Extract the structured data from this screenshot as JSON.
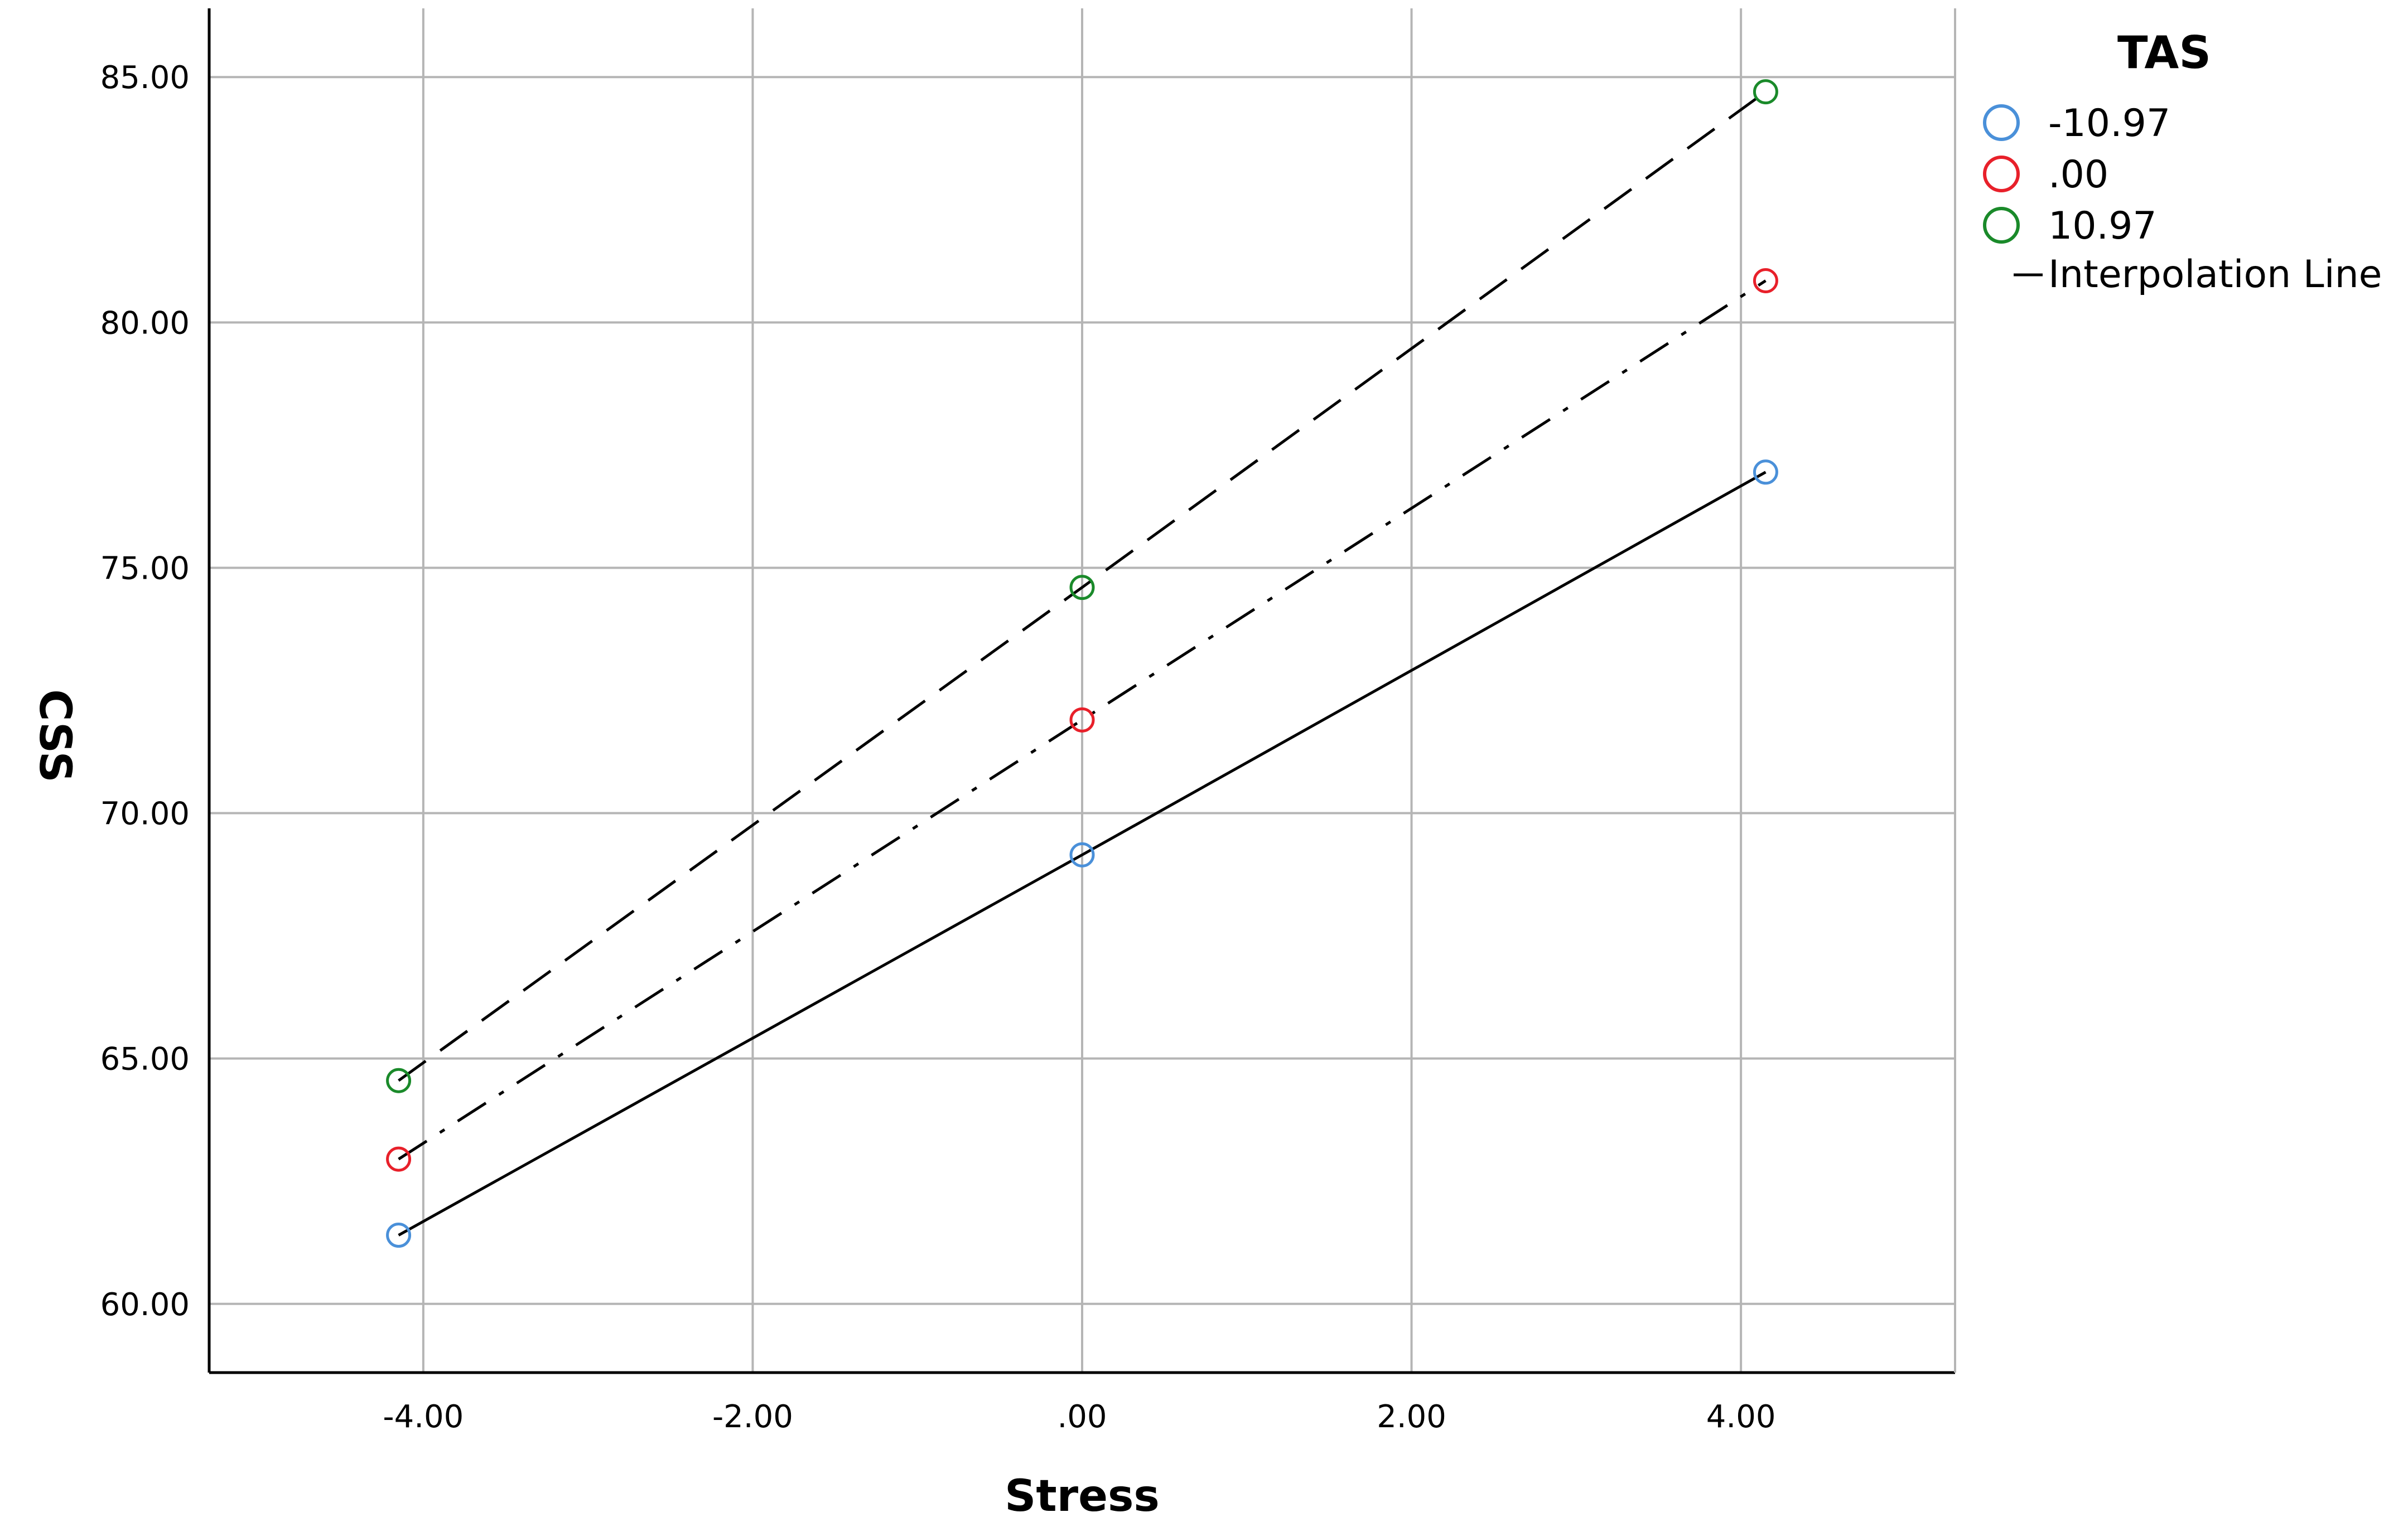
{
  "chart_data": {
    "type": "line",
    "xlabel": "Stress",
    "ylabel": "CSS",
    "xlim": [
      -5.3,
      5.3
    ],
    "ylim": [
      58.6,
      86.4
    ],
    "xticks": [
      -4,
      -2,
      0,
      2,
      4
    ],
    "xtick_labels": [
      "-4.00",
      "-2.00",
      ".00",
      "2.00",
      "4.00"
    ],
    "yticks": [
      60,
      65,
      70,
      75,
      80,
      85
    ],
    "ytick_labels": [
      "60.00",
      "65.00",
      "70.00",
      "75.00",
      "80.00",
      "85.00"
    ],
    "grid": true,
    "legend": {
      "title": "TAS",
      "placement": "right",
      "interpolation_label": "Interpolation Line"
    },
    "series": [
      {
        "name": "-10.97",
        "color": "#4a90d9",
        "dash": "solid",
        "points": [
          {
            "x": -4.15,
            "y": 61.4
          },
          {
            "x": 0.0,
            "y": 69.15
          },
          {
            "x": 4.15,
            "y": 76.95
          }
        ]
      },
      {
        "name": ".00",
        "color": "#e8202a",
        "dash": "dashdot",
        "points": [
          {
            "x": -4.15,
            "y": 62.95
          },
          {
            "x": 0.0,
            "y": 71.9
          },
          {
            "x": 4.15,
            "y": 80.85
          }
        ]
      },
      {
        "name": "10.97",
        "color": "#1a8a2a",
        "dash": "dashed",
        "points": [
          {
            "x": -4.15,
            "y": 64.55
          },
          {
            "x": 0.0,
            "y": 74.6
          },
          {
            "x": 4.15,
            "y": 84.7
          }
        ]
      }
    ]
  }
}
